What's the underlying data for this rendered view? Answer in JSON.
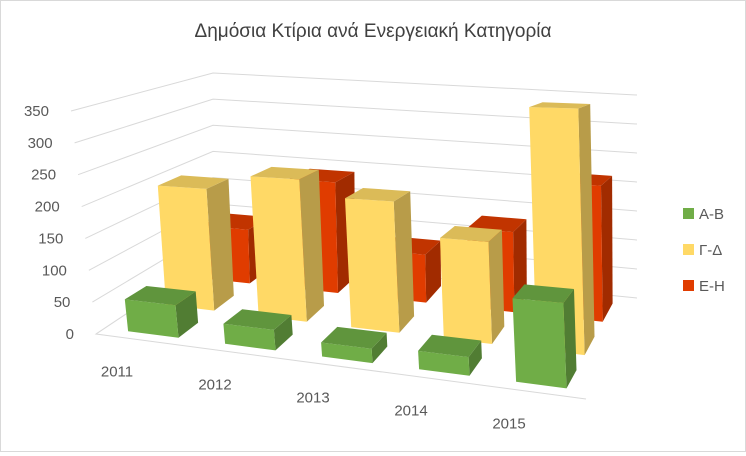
{
  "chart_data": {
    "type": "bar",
    "title": "Δημόσια Κτίρια ανά Ενεργειακή Κατηγορία",
    "categories": [
      "2011",
      "2012",
      "2013",
      "2014",
      "2015"
    ],
    "series": [
      {
        "name": "Α-Β",
        "color": "#70ad47",
        "values": [
          50,
          30,
          20,
          25,
          110
        ]
      },
      {
        "name": "Γ-Δ",
        "color": "#ffd966",
        "values": [
          200,
          225,
          200,
          150,
          350
        ]
      },
      {
        "name": "Ε-Η",
        "color": "#e03c00",
        "values": [
          95,
          190,
          80,
          130,
          215
        ]
      }
    ],
    "yticks": [
      "0",
      "50",
      "100",
      "150",
      "200",
      "250",
      "300",
      "350"
    ],
    "ylim": [
      0,
      350
    ],
    "grid": true,
    "legend_position": "right",
    "projection": "3d-perspective"
  }
}
